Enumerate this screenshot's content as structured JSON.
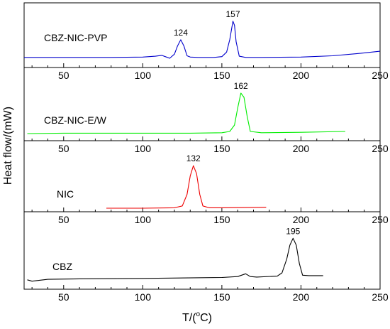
{
  "chart_data": {
    "type": "line",
    "xlabel_main": "T/(",
    "xlabel_deg": "o",
    "xlabel_unit": "C)",
    "ylabel": "Heat flow/(mW)",
    "xlim": [
      25,
      250
    ],
    "xticks": [
      50,
      100,
      150,
      200,
      250
    ],
    "panels": [
      {
        "name": "CBZ-NIC-PVP",
        "color": "#0000cc",
        "peaks": [
          "124",
          "157"
        ],
        "x": [
          25,
          40,
          60,
          80,
          100,
          108,
          112,
          115,
          117,
          120,
          122,
          124,
          126,
          128,
          130,
          135,
          145,
          150,
          153,
          155,
          157,
          158,
          159,
          161,
          165,
          175,
          200,
          220,
          235,
          250
        ],
        "y": [
          0.02,
          0.02,
          0.02,
          0.02,
          0.03,
          0.05,
          0.07,
          0.03,
          0.0,
          0.1,
          0.3,
          0.45,
          0.3,
          0.06,
          0.03,
          0.02,
          0.02,
          0.04,
          0.15,
          0.45,
          0.9,
          0.8,
          0.4,
          0.05,
          0.02,
          0.02,
          0.03,
          0.06,
          0.11,
          0.17
        ]
      },
      {
        "name": "CBZ-NIC-E/W",
        "color": "#00ee00",
        "peaks": [
          "162"
        ],
        "x": [
          27,
          50,
          80,
          100,
          130,
          150,
          155,
          158,
          160,
          162,
          164,
          166,
          168,
          175,
          200,
          228
        ],
        "y": [
          0.0,
          0.01,
          0.01,
          0.01,
          0.01,
          0.02,
          0.05,
          0.2,
          0.6,
          0.95,
          0.85,
          0.4,
          0.05,
          0.02,
          0.03,
          0.05
        ]
      },
      {
        "name": "NIC",
        "color": "#ee0000",
        "peaks": [
          "132"
        ],
        "x": [
          77,
          100,
          120,
          125,
          128,
          130,
          132,
          134,
          136,
          138,
          142,
          150,
          178
        ],
        "y": [
          0.0,
          0.0,
          0.01,
          0.05,
          0.3,
          0.7,
          0.92,
          0.75,
          0.3,
          0.05,
          0.01,
          0.01,
          0.02
        ]
      },
      {
        "name": "CBZ",
        "color": "#000000",
        "peaks": [
          "195"
        ],
        "x": [
          27,
          30,
          40,
          60,
          100,
          150,
          160,
          165,
          168,
          172,
          185,
          188,
          191,
          193,
          195,
          197,
          199,
          201,
          205,
          214
        ],
        "y": [
          0.05,
          0.02,
          0.06,
          0.07,
          0.08,
          0.1,
          0.12,
          0.18,
          0.12,
          0.11,
          0.13,
          0.2,
          0.5,
          0.8,
          0.95,
          0.8,
          0.4,
          0.15,
          0.14,
          0.14
        ]
      }
    ]
  }
}
